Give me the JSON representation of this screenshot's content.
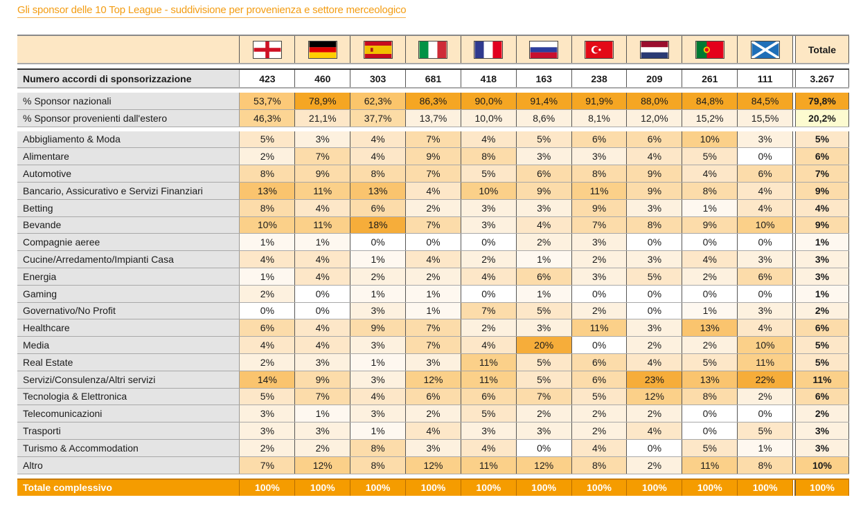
{
  "title": "Gli sponsor delle 10 Top League - suddivisione per provenienza e settore merceologico",
  "countries": [
    "england-flag-icon",
    "germany-flag-icon",
    "spain-flag-icon",
    "italy-flag-icon",
    "france-flag-icon",
    "russia-flag-icon",
    "turkey-flag-icon",
    "netherlands-flag-icon",
    "portugal-flag-icon",
    "scotland-flag-icon"
  ],
  "total_header": "Totale",
  "agreements": {
    "label": "Numero accordi di sponsorizzazione",
    "values": [
      "423",
      "460",
      "303",
      "681",
      "418",
      "163",
      "238",
      "209",
      "261",
      "111"
    ],
    "total": "3.267"
  },
  "origin_rows": [
    {
      "label": "% Sponsor nazionali",
      "values": [
        "53,7%",
        "78,9%",
        "62,3%",
        "86,3%",
        "90,0%",
        "91,4%",
        "91,9%",
        "88,0%",
        "84,8%",
        "84,5%"
      ],
      "total": "79,8%"
    },
    {
      "label": "% Sponsor provenienti dall'estero",
      "values": [
        "46,3%",
        "21,1%",
        "37,7%",
        "13,7%",
        "10,0%",
        "8,6%",
        "8,1%",
        "12,0%",
        "15,2%",
        "15,5%"
      ],
      "total": "20,2%"
    }
  ],
  "sector_rows": [
    {
      "label": "Abbigliamento & Moda",
      "values": [
        "5%",
        "3%",
        "4%",
        "7%",
        "4%",
        "5%",
        "6%",
        "6%",
        "10%",
        "3%"
      ],
      "total": "5%"
    },
    {
      "label": "Alimentare",
      "values": [
        "2%",
        "7%",
        "4%",
        "9%",
        "8%",
        "3%",
        "3%",
        "4%",
        "5%",
        "0%"
      ],
      "total": "6%"
    },
    {
      "label": "Automotive",
      "values": [
        "8%",
        "9%",
        "8%",
        "7%",
        "5%",
        "6%",
        "8%",
        "9%",
        "4%",
        "6%"
      ],
      "total": "7%"
    },
    {
      "label": "Bancario, Assicurativo e Servizi Finanziari",
      "values": [
        "13%",
        "11%",
        "13%",
        "4%",
        "10%",
        "9%",
        "11%",
        "9%",
        "8%",
        "4%"
      ],
      "total": "9%"
    },
    {
      "label": "Betting",
      "values": [
        "8%",
        "4%",
        "6%",
        "2%",
        "3%",
        "3%",
        "9%",
        "3%",
        "1%",
        "4%"
      ],
      "total": "4%"
    },
    {
      "label": "Bevande",
      "values": [
        "10%",
        "11%",
        "18%",
        "7%",
        "3%",
        "4%",
        "7%",
        "8%",
        "9%",
        "10%"
      ],
      "total": "9%"
    },
    {
      "label": "Compagnie aeree",
      "values": [
        "1%",
        "1%",
        "0%",
        "0%",
        "0%",
        "2%",
        "3%",
        "0%",
        "0%",
        "0%"
      ],
      "total": "1%"
    },
    {
      "label": "Cucine/Arredamento/Impianti Casa",
      "values": [
        "4%",
        "4%",
        "1%",
        "4%",
        "2%",
        "1%",
        "2%",
        "3%",
        "4%",
        "3%"
      ],
      "total": "3%"
    },
    {
      "label": "Energia",
      "values": [
        "1%",
        "4%",
        "2%",
        "2%",
        "4%",
        "6%",
        "3%",
        "5%",
        "2%",
        "6%"
      ],
      "total": "3%"
    },
    {
      "label": "Gaming",
      "values": [
        "2%",
        "0%",
        "1%",
        "1%",
        "0%",
        "1%",
        "0%",
        "0%",
        "0%",
        "0%"
      ],
      "total": "1%"
    },
    {
      "label": "Governativo/No Profit",
      "values": [
        "0%",
        "0%",
        "3%",
        "1%",
        "7%",
        "5%",
        "2%",
        "0%",
        "1%",
        "3%"
      ],
      "total": "2%"
    },
    {
      "label": "Healthcare",
      "values": [
        "6%",
        "4%",
        "9%",
        "7%",
        "2%",
        "3%",
        "11%",
        "3%",
        "13%",
        "4%"
      ],
      "total": "6%"
    },
    {
      "label": "Media",
      "values": [
        "4%",
        "4%",
        "3%",
        "7%",
        "4%",
        "20%",
        "0%",
        "2%",
        "2%",
        "10%"
      ],
      "total": "5%"
    },
    {
      "label": "Real Estate",
      "values": [
        "2%",
        "3%",
        "1%",
        "3%",
        "11%",
        "5%",
        "6%",
        "4%",
        "5%",
        "11%"
      ],
      "total": "5%"
    },
    {
      "label": "Servizi/Consulenza/Altri servizi",
      "values": [
        "14%",
        "9%",
        "3%",
        "12%",
        "11%",
        "5%",
        "6%",
        "23%",
        "13%",
        "22%"
      ],
      "total": "11%"
    },
    {
      "label": "Tecnologia & Elettronica",
      "values": [
        "5%",
        "7%",
        "4%",
        "6%",
        "6%",
        "7%",
        "5%",
        "12%",
        "8%",
        "2%"
      ],
      "total": "6%"
    },
    {
      "label": "Telecomunicazioni",
      "values": [
        "3%",
        "1%",
        "3%",
        "2%",
        "5%",
        "2%",
        "2%",
        "2%",
        "0%",
        "0%"
      ],
      "total": "2%"
    },
    {
      "label": "Trasporti",
      "values": [
        "3%",
        "3%",
        "1%",
        "4%",
        "3%",
        "3%",
        "2%",
        "4%",
        "0%",
        "5%"
      ],
      "total": "3%"
    },
    {
      "label": "Turismo & Accommodation",
      "values": [
        "2%",
        "2%",
        "8%",
        "3%",
        "4%",
        "0%",
        "4%",
        "0%",
        "5%",
        "1%"
      ],
      "total": "3%"
    },
    {
      "label": "Altro",
      "values": [
        "7%",
        "12%",
        "8%",
        "12%",
        "11%",
        "12%",
        "8%",
        "2%",
        "11%",
        "8%"
      ],
      "total": "10%"
    }
  ],
  "grand_total": {
    "label": "Totale complessivo",
    "values": [
      "100%",
      "100%",
      "100%",
      "100%",
      "100%",
      "100%",
      "100%",
      "100%",
      "100%",
      "100%"
    ],
    "total": "100%"
  }
}
